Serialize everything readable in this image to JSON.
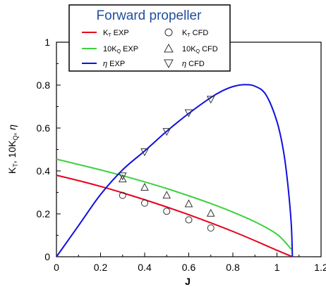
{
  "chart_data": {
    "type": "line",
    "title": "Forward propeller",
    "xlabel": "J",
    "ylabel": "KT, 10KQ, η",
    "xlim": [
      0,
      1.2
    ],
    "ylim": [
      0,
      1
    ],
    "x_ticks": [
      "0",
      "0.2",
      "0.4",
      "0.6",
      "0.8",
      "1",
      "1.2"
    ],
    "y_ticks": [
      "0",
      "0.2",
      "0.4",
      "0.6",
      "0.8",
      "1"
    ],
    "grid": false,
    "legend_position": "top",
    "colors": {
      "kt": "#e8001c",
      "kq": "#3cd23c",
      "eta": "#1010e0",
      "title": "#1f4e9c"
    },
    "series": [
      {
        "name": "KT EXP",
        "kind": "line",
        "color": "#e8001c",
        "x": [
          0,
          0.1,
          0.2,
          0.3,
          0.4,
          0.5,
          0.6,
          0.7,
          0.8,
          0.9,
          1.0,
          1.07
        ],
        "y": [
          0.38,
          0.355,
          0.328,
          0.298,
          0.266,
          0.232,
          0.196,
          0.158,
          0.118,
          0.075,
          0.03,
          0.0
        ]
      },
      {
        "name": "10KQ EXP",
        "kind": "line",
        "color": "#3cd23c",
        "x": [
          0,
          0.1,
          0.2,
          0.3,
          0.4,
          0.5,
          0.6,
          0.7,
          0.8,
          0.9,
          1.0,
          1.065
        ],
        "y": [
          0.455,
          0.43,
          0.405,
          0.378,
          0.349,
          0.318,
          0.284,
          0.248,
          0.208,
          0.163,
          0.105,
          0.035
        ]
      },
      {
        "name": "η EXP",
        "kind": "line",
        "color": "#1010e0",
        "x": [
          0,
          0.1,
          0.2,
          0.3,
          0.4,
          0.5,
          0.6,
          0.7,
          0.75,
          0.8,
          0.85,
          0.9,
          0.95,
          1.0,
          1.03,
          1.05,
          1.065,
          1.07
        ],
        "y": [
          0,
          0.145,
          0.29,
          0.405,
          0.493,
          0.585,
          0.668,
          0.742,
          0.772,
          0.793,
          0.802,
          0.795,
          0.755,
          0.63,
          0.49,
          0.33,
          0.15,
          0.0
        ]
      },
      {
        "name": "KT CFD",
        "kind": "marker",
        "marker": "circle",
        "x": [
          0.3,
          0.4,
          0.5,
          0.6,
          0.7
        ],
        "y": [
          0.286,
          0.25,
          0.212,
          0.172,
          0.134
        ]
      },
      {
        "name": "10KQ CFD",
        "kind": "marker",
        "marker": "triangle-up",
        "x": [
          0.3,
          0.4,
          0.5,
          0.6,
          0.7
        ],
        "y": [
          0.362,
          0.323,
          0.286,
          0.246,
          0.202
        ]
      },
      {
        "name": "η CFD",
        "kind": "marker",
        "marker": "triangle-down",
        "x": [
          0.3,
          0.4,
          0.5,
          0.6,
          0.7
        ],
        "y": [
          0.378,
          0.49,
          0.585,
          0.672,
          0.735
        ]
      }
    ]
  }
}
